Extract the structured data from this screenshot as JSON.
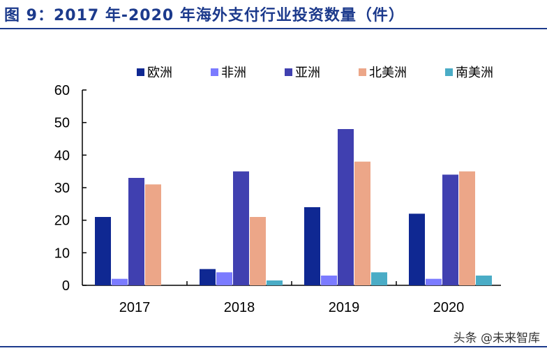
{
  "title": "图 9：2017 年-2020 年海外支付行业投资数量（件）",
  "watermark": "头条 @未来智库",
  "chart_data": {
    "type": "bar",
    "title": "2017 年-2020 年海外支付行业投资数量（件）",
    "xlabel": "",
    "ylabel": "",
    "categories": [
      "2017",
      "2018",
      "2019",
      "2020"
    ],
    "ylim": [
      0,
      60
    ],
    "yticks": [
      0,
      10,
      20,
      30,
      40,
      50,
      60
    ],
    "legend_position": "top",
    "grid": false,
    "series": [
      {
        "name": "欧洲",
        "color": "#0f2892",
        "values": [
          21,
          5,
          24,
          22
        ]
      },
      {
        "name": "非洲",
        "color": "#7b7bff",
        "values": [
          2,
          4,
          3,
          2
        ]
      },
      {
        "name": "亚洲",
        "color": "#4040b0",
        "values": [
          33,
          35,
          48,
          34
        ]
      },
      {
        "name": "北美洲",
        "color": "#eca688",
        "values": [
          31,
          21,
          38,
          35
        ]
      },
      {
        "name": "南美洲",
        "color": "#4aacc6",
        "values": [
          0,
          1.5,
          4,
          3
        ]
      }
    ]
  }
}
